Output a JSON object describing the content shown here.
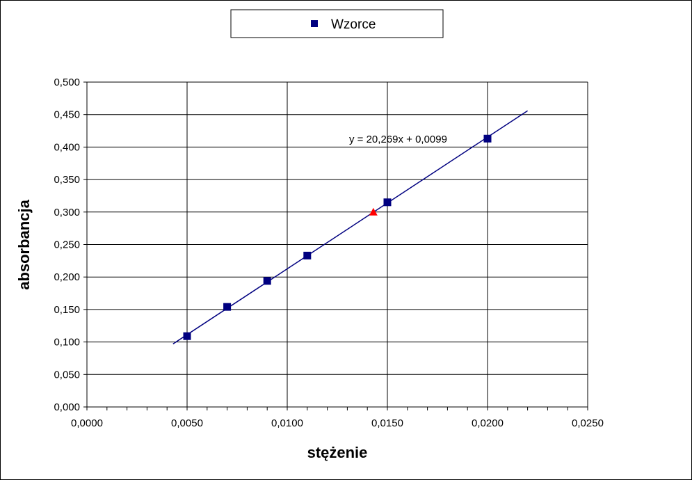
{
  "chart_data": {
    "type": "scatter",
    "title": "",
    "xlabel": "stężenie",
    "ylabel": "absorbancja",
    "xlim": [
      0,
      0.025
    ],
    "ylim": [
      0,
      0.5
    ],
    "x_ticks": [
      0,
      0.005,
      0.01,
      0.015,
      0.02,
      0.025
    ],
    "x_tick_labels": [
      "0,0000",
      "0,0050",
      "0,0100",
      "0,0150",
      "0,0200",
      "0,0250"
    ],
    "y_ticks": [
      0,
      0.05,
      0.1,
      0.15,
      0.2,
      0.25,
      0.3,
      0.35,
      0.4,
      0.45,
      0.5
    ],
    "y_tick_labels": [
      "0,000",
      "0,050",
      "0,100",
      "0,150",
      "0,200",
      "0,250",
      "0,300",
      "0,350",
      "0,400",
      "0,450",
      "0,500"
    ],
    "grid": true,
    "legend": "top-center",
    "series": [
      {
        "name": "Wzorce",
        "marker": "square",
        "color": "#000080",
        "x": [
          0.005,
          0.007,
          0.009,
          0.011,
          0.015,
          0.02
        ],
        "y": [
          0.109,
          0.154,
          0.194,
          0.233,
          0.315,
          0.413
        ]
      },
      {
        "marker": "triangle",
        "color": "#ff0000",
        "x": [
          0.0143
        ],
        "y": [
          0.3
        ]
      }
    ],
    "trendline": {
      "slope": 20.269,
      "intercept": 0.0099,
      "x_range": [
        0.0043,
        0.022
      ],
      "color": "#000080",
      "equation": "y = 20,269x + 0,0099"
    }
  }
}
